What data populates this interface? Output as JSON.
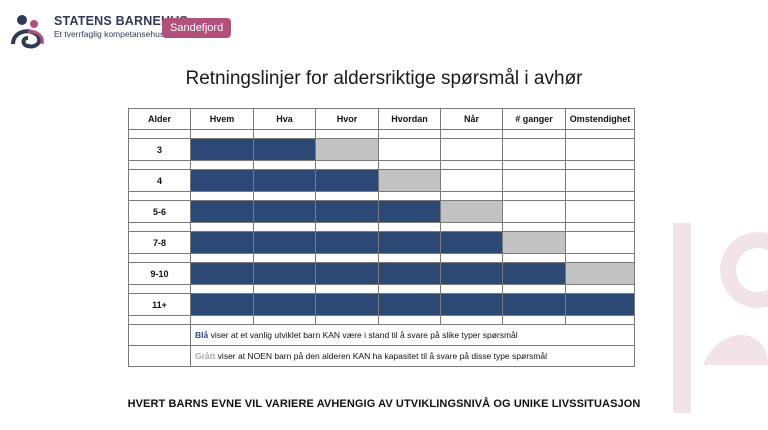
{
  "header": {
    "org_name_bold": "STATENS",
    "org_name_rest": "BARNEHUS",
    "org_subtitle": "Et tverrfaglig kompetansehus",
    "location_badge": "Sandefjord",
    "brand_color": "#b2507c",
    "logo_icon": "statens-barnehus-logo"
  },
  "title": "Retningslinjer for aldersriktige spørsmål i avhør",
  "table": {
    "columns": [
      "Alder",
      "Hvem",
      "Hva",
      "Hvor",
      "Hvordan",
      "Når",
      "# ganger",
      "Omstendighet"
    ],
    "rows": [
      {
        "age": "3",
        "cells": [
          "blue",
          "blue",
          "gray",
          "white",
          "white",
          "white",
          "white"
        ]
      },
      {
        "age": "4",
        "cells": [
          "blue",
          "blue",
          "blue",
          "gray",
          "white",
          "white",
          "white"
        ]
      },
      {
        "age": "5-6",
        "cells": [
          "blue",
          "blue",
          "blue",
          "blue",
          "gray",
          "white",
          "white"
        ]
      },
      {
        "age": "7-8",
        "cells": [
          "blue",
          "blue",
          "blue",
          "blue",
          "blue",
          "gray",
          "white"
        ]
      },
      {
        "age": "9-10",
        "cells": [
          "blue",
          "blue",
          "blue",
          "blue",
          "blue",
          "blue",
          "gray"
        ]
      },
      {
        "age": "11+",
        "cells": [
          "blue",
          "blue",
          "blue",
          "blue",
          "blue",
          "blue",
          "blue"
        ]
      }
    ],
    "legend": {
      "blue_word": "Blå",
      "blue_text": " viser at et vanlig utviklet barn KAN være i stand til å svare på slike typer spørsmål",
      "gray_word": "Grått",
      "gray_text": " viser at NOEN barn på den alderen KAN ha kapasitet til å svare på disse type spørsmål"
    },
    "colors": {
      "blue": "#2c4874",
      "gray": "#c2c2c2",
      "white": "#ffffff"
    }
  },
  "footer": "HVERT BARNS EVNE VIL VARIERE AVHENGIG AV UTVIKLINGSNIVÅ OG UNIKE LIVSSITUASJON"
}
